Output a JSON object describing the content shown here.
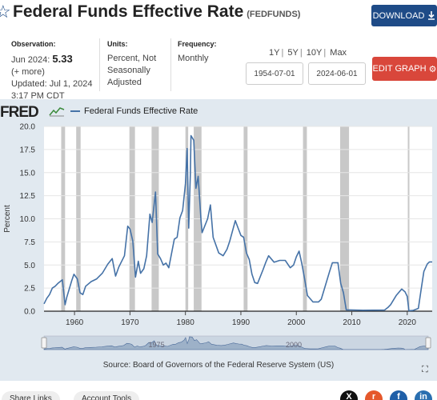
{
  "header": {
    "title": "Federal Funds Effective Rate",
    "series_id": "(FEDFUNDS)",
    "download_label": "DOWNLOAD",
    "star_icon": "star-icon",
    "download_icon": "download-icon"
  },
  "meta": {
    "observation_label": "Observation:",
    "observation_period": "Jun 2024:",
    "observation_value": "5.33",
    "more": "(+ more)",
    "updated_line": "Updated: Jul 1, 2024",
    "updated_time": "3:17 PM CDT",
    "units_label": "Units:",
    "units_value": "Percent, Not Seasonally Adjusted",
    "frequency_label": "Frequency:",
    "frequency_value": "Monthly"
  },
  "ranges": [
    "1Y",
    "5Y",
    "10Y",
    "Max"
  ],
  "dates": {
    "start": "1954-07-01",
    "end": "2024-06-01"
  },
  "edit_graph_label": "EDIT GRAPH",
  "chart_panel": {
    "logo": "FRED",
    "source": "Source: Board of Governors of the Federal Reserve System (US)",
    "navigator_labels": [
      "1975",
      "2000"
    ]
  },
  "bottom": {
    "share_links": "Share Links",
    "account_tools": "Account Tools"
  },
  "colors": {
    "line": "#4572a7",
    "recession": "#c8c8c8",
    "panel": "#e1e9f0",
    "download": "#1e4b87",
    "edit": "#d9473b"
  },
  "chart_data": {
    "type": "line",
    "title": "",
    "xlabel": "",
    "ylabel": "Percent",
    "xlim": [
      1954.5,
      2024.5
    ],
    "ylim": [
      0,
      20
    ],
    "y_ticks": [
      "0.0",
      "2.5",
      "5.0",
      "7.5",
      "10.0",
      "12.5",
      "15.0",
      "17.5",
      "20.0"
    ],
    "x_ticks": [
      "1960",
      "1970",
      "1980",
      "1990",
      "2000",
      "2010",
      "2020"
    ],
    "legend": "top-left",
    "series": [
      {
        "name": "Federal Funds Effective Rate",
        "x": [
          1954.5,
          1955.0,
          1955.5,
          1956.0,
          1956.5,
          1957.0,
          1957.8,
          1958.3,
          1958.6,
          1959.5,
          1959.9,
          1960.5,
          1961.0,
          1961.5,
          1962.0,
          1963.0,
          1964.0,
          1965.0,
          1966.0,
          1966.8,
          1967.4,
          1968.0,
          1969.0,
          1969.6,
          1970.0,
          1970.5,
          1971.0,
          1971.5,
          1971.9,
          1972.5,
          1973.0,
          1973.6,
          1974.0,
          1974.6,
          1975.0,
          1975.5,
          1976.0,
          1976.5,
          1977.0,
          1978.0,
          1978.5,
          1979.0,
          1979.5,
          1980.0,
          1980.3,
          1980.6,
          1980.9,
          1981.0,
          1981.5,
          1981.9,
          1982.3,
          1982.8,
          1983.0,
          1984.0,
          1984.5,
          1985.0,
          1986.0,
          1986.8,
          1987.5,
          1988.0,
          1989.0,
          1989.5,
          1990.0,
          1990.5,
          1991.0,
          1991.5,
          1992.0,
          1992.5,
          1993.0,
          1994.0,
          1994.5,
          1995.0,
          1996.0,
          1997.0,
          1998.0,
          1998.9,
          1999.5,
          2000.0,
          2000.5,
          2001.0,
          2001.5,
          2002.0,
          2003.0,
          2004.0,
          2004.5,
          2005.0,
          2006.0,
          2006.5,
          2007.5,
          2008.0,
          2008.5,
          2009.0,
          2012.0,
          2015.9,
          2016.5,
          2017.0,
          2018.0,
          2019.0,
          2019.6,
          2020.0,
          2020.3,
          2021.0,
          2022.0,
          2022.5,
          2023.0,
          2023.6,
          2024.0,
          2024.5
        ],
        "values": [
          0.8,
          1.4,
          1.8,
          2.5,
          2.7,
          3.0,
          3.4,
          0.7,
          1.5,
          3.3,
          4.0,
          3.5,
          2.0,
          1.8,
          2.7,
          3.2,
          3.5,
          4.1,
          5.1,
          5.7,
          3.8,
          4.8,
          6.0,
          9.2,
          8.9,
          7.6,
          3.7,
          5.4,
          4.1,
          4.6,
          6.0,
          10.5,
          9.6,
          12.9,
          6.2,
          5.7,
          5.0,
          5.2,
          4.7,
          7.8,
          8.0,
          10.1,
          10.9,
          13.8,
          17.6,
          9.0,
          15.0,
          19.0,
          18.5,
          13.3,
          14.6,
          9.9,
          8.5,
          10.0,
          11.5,
          8.0,
          6.3,
          6.0,
          6.7,
          7.6,
          9.8,
          9.0,
          8.2,
          8.0,
          6.3,
          5.6,
          4.0,
          3.1,
          3.0,
          4.5,
          5.3,
          6.0,
          5.3,
          5.5,
          5.5,
          4.7,
          5.0,
          5.9,
          6.5,
          5.1,
          3.5,
          1.7,
          1.0,
          1.0,
          1.3,
          2.3,
          4.3,
          5.25,
          5.25,
          3.0,
          2.0,
          0.15,
          0.1,
          0.12,
          0.4,
          0.7,
          1.7,
          2.4,
          2.1,
          1.6,
          0.05,
          0.08,
          0.3,
          2.3,
          4.3,
          5.1,
          5.33,
          5.33
        ]
      }
    ],
    "recessions": [
      [
        1957.6,
        1958.3
      ],
      [
        1960.3,
        1961.1
      ],
      [
        1969.9,
        1970.9
      ],
      [
        1973.9,
        1975.2
      ],
      [
        1980.0,
        1980.5
      ],
      [
        1981.5,
        1982.9
      ],
      [
        1990.5,
        1991.2
      ],
      [
        2001.2,
        2001.9
      ],
      [
        2007.9,
        2009.5
      ],
      [
        2020.1,
        2020.3
      ]
    ]
  }
}
